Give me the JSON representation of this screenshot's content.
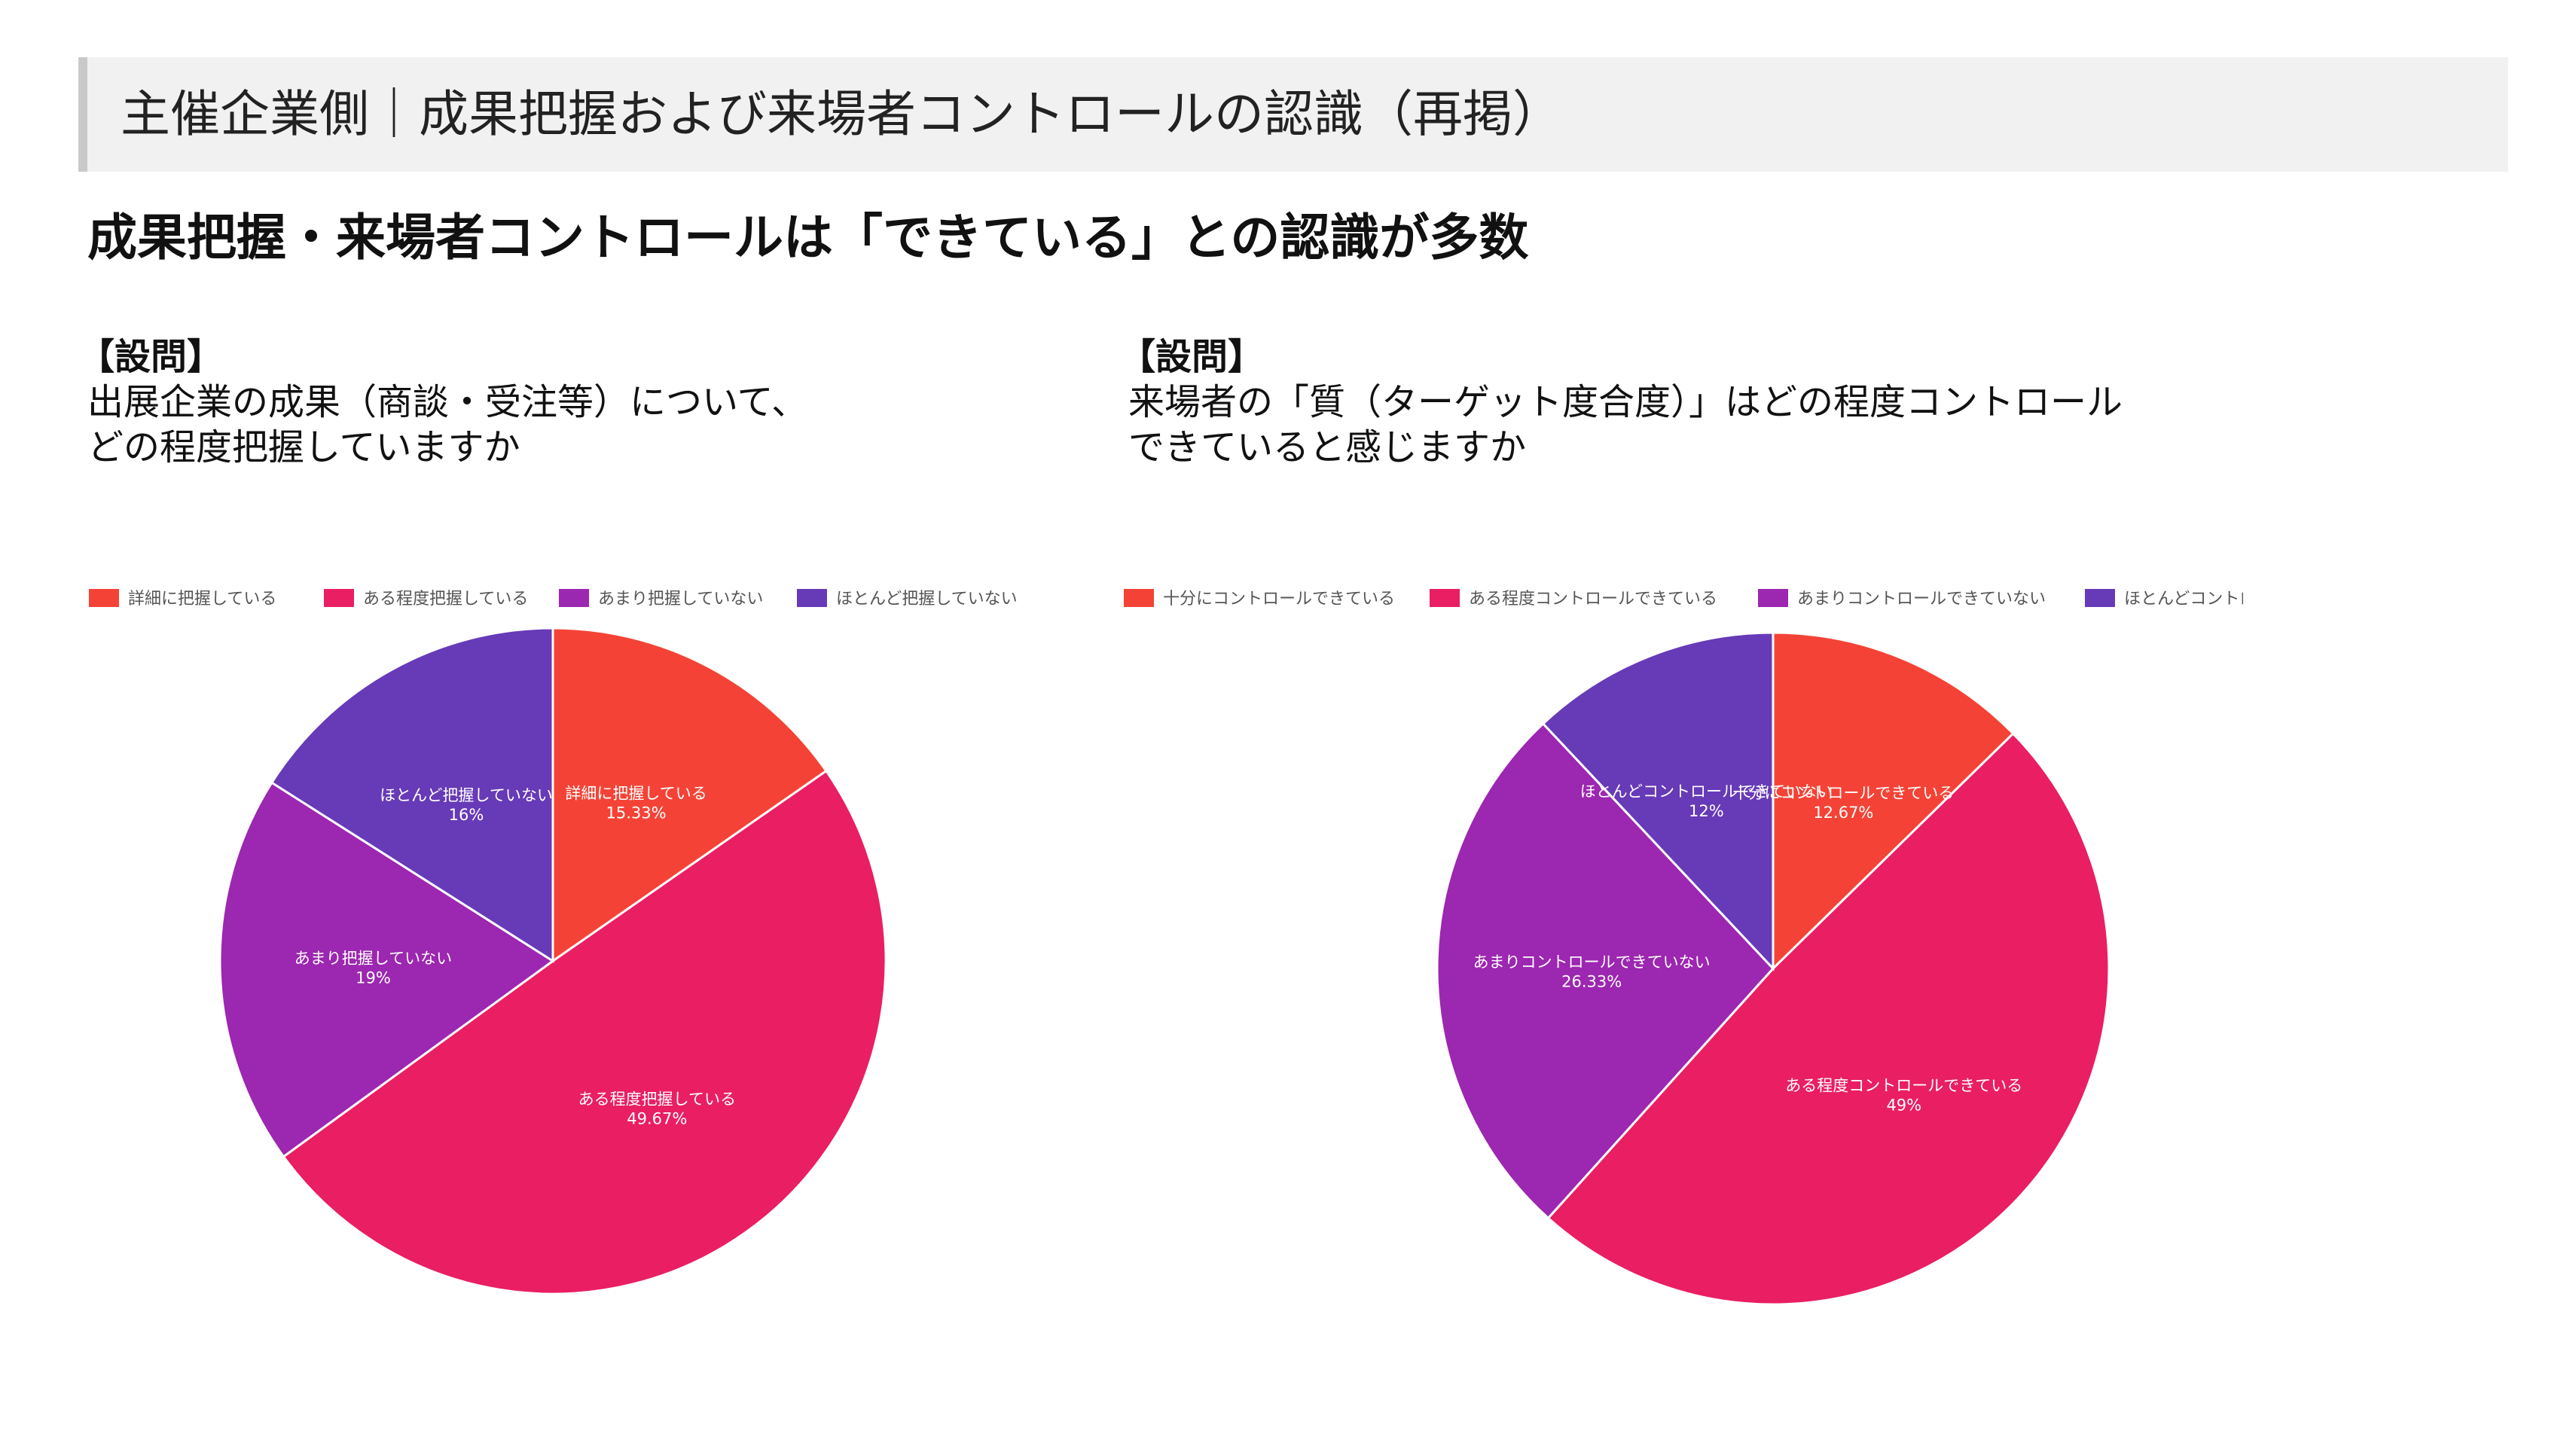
{
  "header": {
    "title": "主催企業側｜成果把握および来場者コントロールの認識（再掲）"
  },
  "headline": "成果把握・来場者コントロールは「できている」との認識が多数",
  "questions": [
    {
      "label": "【設問】",
      "lines": [
        "出展企業の成果（商談・受注等）について、",
        "どの程度把握していますか"
      ]
    },
    {
      "label": "【設問】",
      "lines": [
        "来場者の「質（ターゲット度合度）」はどの程度コントロール",
        "できていると感じますか"
      ]
    }
  ],
  "colors": {
    "red": "#f44336",
    "pink": "#e91e63",
    "purple": "#9c27b0",
    "indigo": "#673ab7"
  },
  "chart_data": [
    {
      "type": "pie",
      "title": "",
      "legend_position": "top",
      "categories": [
        "詳細に把握している",
        "ある程度把握している",
        "あまり把握していない",
        "ほとんど把握していない"
      ],
      "values": [
        15.33,
        49.67,
        19,
        16
      ],
      "value_labels": [
        "15.33%",
        "49.67%",
        "19%",
        "16%"
      ],
      "colors": [
        "#f44336",
        "#e91e63",
        "#9c27b0",
        "#673ab7"
      ]
    },
    {
      "type": "pie",
      "title": "",
      "legend_position": "top",
      "categories": [
        "十分にコントロールできている",
        "ある程度コントロールできている",
        "あまりコントロールできていない",
        "ほとんどコントロールできていない"
      ],
      "values": [
        12.67,
        49,
        26.33,
        12
      ],
      "value_labels": [
        "12.67%",
        "49%",
        "26.33%",
        "12%"
      ],
      "colors": [
        "#f44336",
        "#e91e63",
        "#9c27b0",
        "#673ab7"
      ]
    }
  ]
}
